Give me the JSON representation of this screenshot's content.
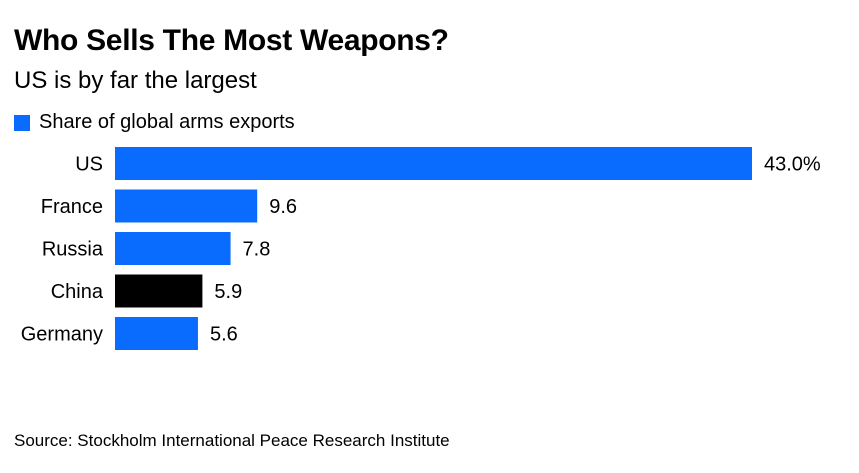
{
  "title": "Who Sells The Most Weapons?",
  "subtitle": "US is by far the largest",
  "legend": {
    "label": "Share of global arms exports",
    "color": "#0a6cff"
  },
  "source": "Source: Stockholm International Peace Research Institute",
  "colors": {
    "default": "#0a6cff",
    "highlight": "#000000"
  },
  "chart_data": {
    "type": "bar",
    "orientation": "horizontal",
    "categories": [
      "US",
      "France",
      "Russia",
      "China",
      "Germany"
    ],
    "series": [
      {
        "name": "Share of global arms exports",
        "values": [
          43.0,
          9.6,
          7.8,
          5.9,
          5.6
        ]
      }
    ],
    "value_labels": [
      "43.0%",
      "9.6",
      "7.8",
      "5.9",
      "5.6"
    ],
    "highlight": [
      "China"
    ],
    "unit": "%",
    "title": "Who Sells The Most Weapons?",
    "subtitle": "US is by far the largest",
    "xlim": [
      0,
      43.0
    ],
    "grid": false,
    "legend_position": "top-left"
  }
}
